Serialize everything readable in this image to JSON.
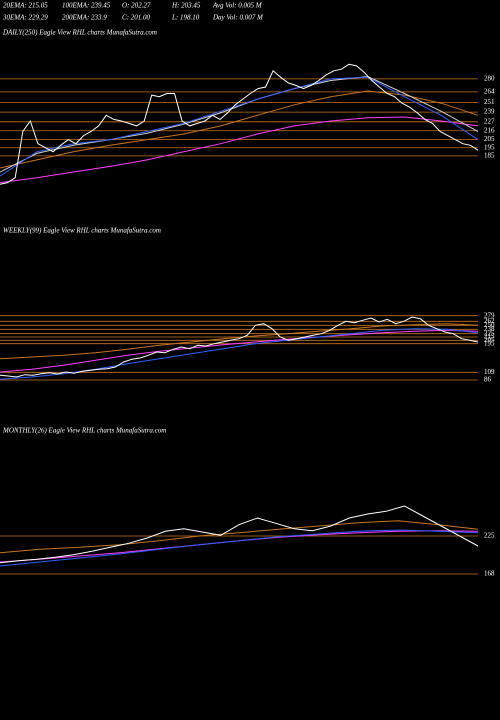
{
  "header": {
    "row1": [
      "20EMA: 215.05",
      "100EMA: 239.45",
      "O: 202.27",
      "H: 203.45",
      "Avg Vol: 0.005 M"
    ],
    "row2": [
      "30EMA: 229.29",
      "200EMA: 233.9",
      "C: 201.00",
      "L: 198.10",
      "Day Vol: 0.007 M"
    ]
  },
  "chart_data": [
    {
      "type": "line",
      "title": "DAILY(250) Eagle View RHL charts MunafaSutra.com",
      "ylim": [
        149,
        328
      ],
      "yticks": [
        280,
        264,
        251,
        239,
        227,
        216,
        205,
        195,
        185
      ],
      "grid": true,
      "grid_color": "#c8741e",
      "series": [
        {
          "color": "#ff3cff",
          "values": [
            152,
            158,
            165,
            172,
            180,
            190,
            200,
            212,
            222,
            228,
            232,
            233,
            228,
            222
          ]
        },
        {
          "color": "#c8741e",
          "values": [
            170,
            180,
            190,
            198,
            205,
            212,
            222,
            235,
            248,
            258,
            265,
            260,
            250,
            235
          ]
        },
        {
          "color": "#d0d0d0",
          "values": [
            165,
            188,
            198,
            205,
            213,
            224,
            238,
            255,
            268,
            278,
            283,
            262,
            240,
            215
          ]
        },
        {
          "color": "#2f5fff",
          "values": [
            160,
            190,
            200,
            205,
            215,
            225,
            240,
            255,
            268,
            280,
            282,
            258,
            235,
            205
          ]
        },
        {
          "color": "#ffffff",
          "values": [
            150,
            152,
            158,
            215,
            228,
            200,
            195,
            190,
            198,
            205,
            200,
            210,
            215,
            222,
            235,
            230,
            228,
            225,
            222,
            228,
            260,
            258,
            262,
            262,
            228,
            222,
            225,
            228,
            235,
            230,
            238,
            248,
            255,
            262,
            268,
            270,
            290,
            282,
            275,
            272,
            268,
            272,
            278,
            285,
            290,
            292,
            298,
            296,
            288,
            278,
            270,
            262,
            258,
            250,
            245,
            238,
            230,
            225,
            215,
            210,
            205,
            200,
            198,
            192
          ]
        }
      ]
    },
    {
      "type": "line",
      "title": "WEEKLY(99) Eagle View RHL charts MunafaSutra.com",
      "ylim": [
        71,
        521
      ],
      "yticks": [
        279,
        262,
        250,
        238,
        225,
        215,
        205,
        195,
        109,
        86
      ],
      "grid": true,
      "grid_color": "#c8741e",
      "series": [
        {
          "color": "#ff3cff",
          "values": [
            110,
            118,
            130,
            145,
            160,
            172,
            182,
            192,
            200,
            208,
            215,
            222,
            228,
            232,
            235,
            232
          ]
        },
        {
          "color": "#c8741e",
          "values": [
            150,
            155,
            160,
            168,
            178,
            190,
            200,
            210,
            218,
            225,
            232,
            240,
            248,
            252,
            255,
            250
          ]
        },
        {
          "color": "#2f5fff",
          "values": [
            88,
            95,
            105,
            118,
            135,
            150,
            165,
            180,
            195,
            205,
            215,
            225,
            235,
            240,
            238,
            228
          ]
        },
        {
          "color": "#ffffff",
          "values": [
            100,
            98,
            95,
            102,
            100,
            105,
            108,
            104,
            110,
            106,
            112,
            115,
            118,
            120,
            125,
            140,
            148,
            152,
            160,
            170,
            168,
            178,
            185,
            180,
            190,
            188,
            195,
            200,
            205,
            210,
            220,
            250,
            255,
            240,
            215,
            205,
            210,
            215,
            220,
            225,
            235,
            250,
            262,
            258,
            265,
            272,
            260,
            268,
            255,
            262,
            275,
            270,
            250,
            240,
            230,
            225,
            210,
            205,
            200
          ]
        }
      ]
    },
    {
      "type": "line",
      "title": "MONTHLY(26) Eagle View RHL charts MunafaSutra.com",
      "ylim": [
        144,
        384
      ],
      "yticks": [
        225,
        168
      ],
      "grid": true,
      "grid_color": "#c8741e",
      "series": [
        {
          "color": "#ff3cff",
          "values": [
            186,
            190,
            195,
            200,
            206,
            212,
            218,
            223,
            227,
            230,
            232,
            233,
            232
          ]
        },
        {
          "color": "#c8741e",
          "values": [
            200,
            205,
            208,
            212,
            218,
            225,
            230,
            235,
            240,
            245,
            248,
            242,
            235
          ]
        },
        {
          "color": "#2f5fff",
          "values": [
            180,
            186,
            192,
            198,
            205,
            212,
            218,
            224,
            228,
            232,
            234,
            232,
            230
          ]
        },
        {
          "color": "#ffffff",
          "values": [
            185,
            188,
            190,
            193,
            197,
            202,
            208,
            214,
            222,
            232,
            236,
            231,
            226,
            242,
            252,
            244,
            236,
            233,
            240,
            252,
            258,
            262,
            270,
            255,
            240,
            225,
            210
          ]
        }
      ]
    }
  ]
}
